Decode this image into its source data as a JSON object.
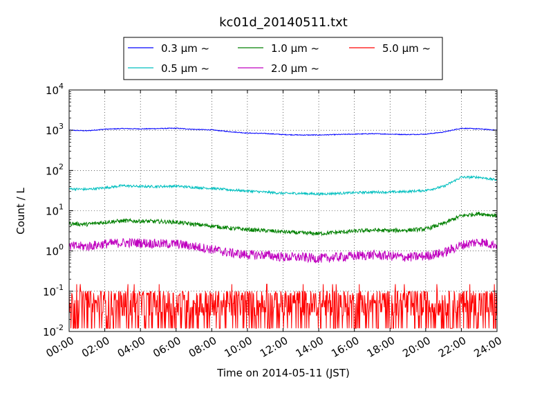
{
  "chart_data": {
    "type": "line",
    "title": "kc01d_20140511.txt",
    "xlabel": "Time on 2014-05-11 (JST)",
    "ylabel": "Count / L",
    "yscale": "log",
    "xlim": [
      0,
      24
    ],
    "ylim": [
      0.01,
      10000
    ],
    "grid": true,
    "legend_position": "top",
    "x_tick_labels": [
      "00:00",
      "02:00",
      "04:00",
      "06:00",
      "08:00",
      "10:00",
      "12:00",
      "14:00",
      "16:00",
      "18:00",
      "20:00",
      "22:00",
      "24:00"
    ],
    "y_ticks": [
      {
        "value": 0.01,
        "base": "10",
        "exp": "-2"
      },
      {
        "value": 0.1,
        "base": "10",
        "exp": "-1"
      },
      {
        "value": 1,
        "base": "10",
        "exp": "0"
      },
      {
        "value": 10,
        "base": "10",
        "exp": "1"
      },
      {
        "value": 100,
        "base": "10",
        "exp": "2"
      },
      {
        "value": 1000,
        "base": "10",
        "exp": "3"
      },
      {
        "value": 10000,
        "base": "10",
        "exp": "4"
      }
    ],
    "series": [
      {
        "name": "0.3 μm  ~",
        "color": "#0000ff",
        "noise": 0.01,
        "x": [
          0,
          1,
          2,
          3,
          4,
          5,
          6,
          7,
          8,
          9,
          10,
          11,
          12,
          13,
          14,
          15,
          16,
          17,
          18,
          19,
          20,
          21,
          22,
          23,
          24
        ],
        "values": [
          1000,
          970,
          1060,
          1100,
          1080,
          1100,
          1120,
          1050,
          1020,
          920,
          850,
          830,
          780,
          760,
          760,
          780,
          800,
          820,
          800,
          780,
          800,
          900,
          1120,
          1080,
          1000
        ]
      },
      {
        "name": "0.5 μm  ~",
        "color": "#00bfbf",
        "noise": 0.03,
        "x": [
          0,
          1,
          2,
          3,
          4,
          5,
          6,
          7,
          8,
          9,
          10,
          11,
          12,
          13,
          14,
          15,
          16,
          17,
          18,
          19,
          20,
          21,
          22,
          23,
          24
        ],
        "values": [
          35,
          34,
          37,
          42,
          40,
          40,
          41,
          38,
          36,
          33,
          31,
          29,
          27,
          27,
          26,
          27,
          28,
          29,
          29,
          30,
          32,
          40,
          68,
          68,
          58
        ]
      },
      {
        "name": "1.0 μm  ~",
        "color": "#008000",
        "noise": 0.05,
        "x": [
          0,
          1,
          2,
          3,
          4,
          5,
          6,
          7,
          8,
          9,
          10,
          11,
          12,
          13,
          14,
          15,
          16,
          17,
          18,
          19,
          20,
          21,
          22,
          23,
          24
        ],
        "values": [
          4.8,
          4.6,
          5.2,
          5.6,
          5.5,
          5.4,
          5.2,
          4.6,
          4.2,
          3.7,
          3.4,
          3.2,
          3.0,
          2.8,
          2.7,
          2.9,
          3.1,
          3.3,
          3.2,
          3.3,
          3.5,
          4.8,
          7.5,
          8.5,
          7.5
        ]
      },
      {
        "name": "2.0 μm  ~",
        "color": "#bf00bf",
        "noise": 0.12,
        "x": [
          0,
          1,
          2,
          3,
          4,
          5,
          6,
          7,
          8,
          9,
          10,
          11,
          12,
          13,
          14,
          15,
          16,
          17,
          18,
          19,
          20,
          21,
          22,
          23,
          24
        ],
        "values": [
          1.3,
          1.3,
          1.5,
          1.6,
          1.6,
          1.5,
          1.5,
          1.3,
          1.1,
          0.9,
          0.8,
          0.8,
          0.7,
          0.7,
          0.65,
          0.7,
          0.75,
          0.8,
          0.75,
          0.7,
          0.75,
          0.9,
          1.4,
          1.7,
          1.4
        ]
      },
      {
        "name": "5.0 μm  ~",
        "color": "#ff0000",
        "noise": 0,
        "x": [
          0,
          1,
          2,
          3,
          4,
          5,
          6,
          7,
          8,
          9,
          10,
          11,
          12,
          13,
          14,
          15,
          16,
          17,
          18,
          19,
          20,
          21,
          22,
          23,
          24
        ],
        "values": [
          0.03,
          0.03,
          0.03,
          0.035,
          0.035,
          0.03,
          0.03,
          0.025,
          0.025,
          0.03,
          0.03,
          0.03,
          0.03,
          0.03,
          0.03,
          0.035,
          0.03,
          0.03,
          0.025,
          0.025,
          0.025,
          0.025,
          0.03,
          0.03,
          0.03
        ]
      }
    ]
  }
}
